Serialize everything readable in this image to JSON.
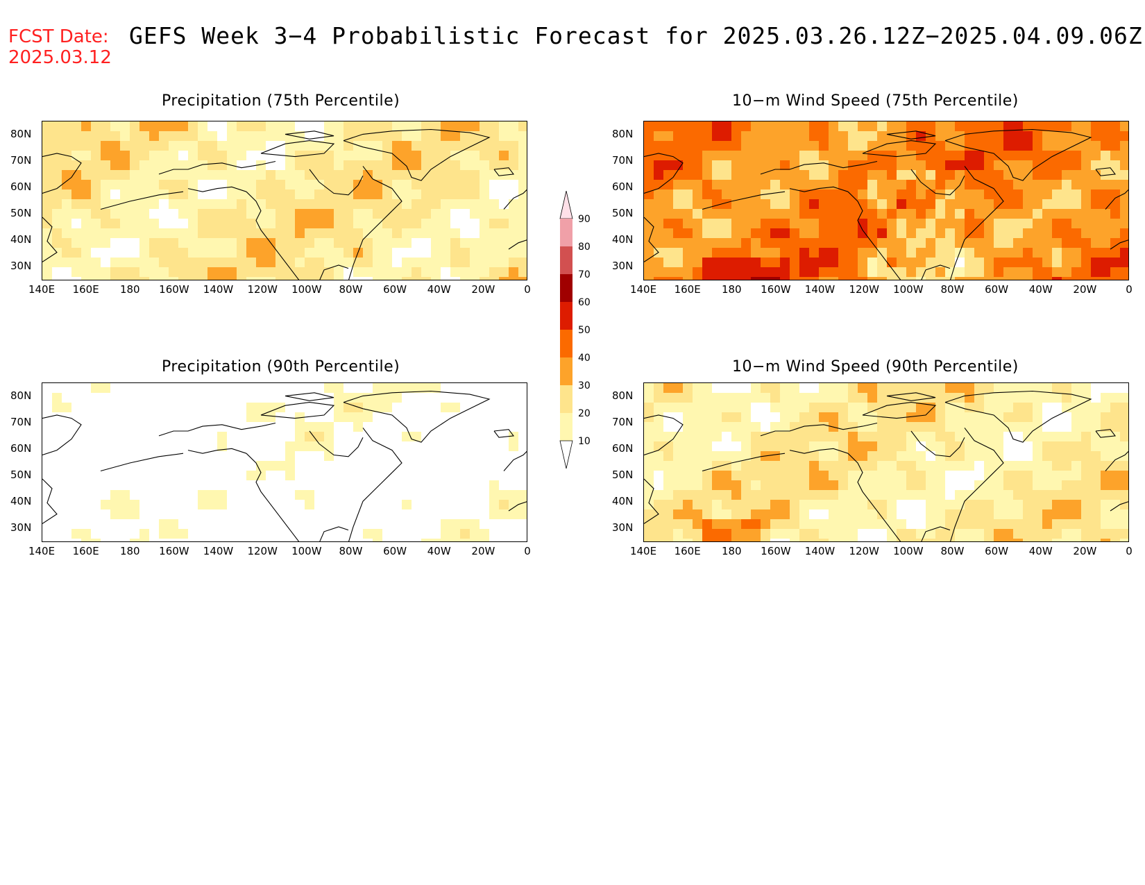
{
  "header": {
    "fcst_label": "FCST Date:",
    "fcst_date": "2025.03.12",
    "title": "GEFS Week 3−4 Probabilistic Forecast for 2025.03.26.12Z−2025.04.09.06Z"
  },
  "axes": {
    "lat_labels": [
      "80N",
      "70N",
      "60N",
      "50N",
      "40N",
      "30N"
    ],
    "lon_labels": [
      "140E",
      "160E",
      "180",
      "160W",
      "140W",
      "120W",
      "100W",
      "80W",
      "60W",
      "40W",
      "20W",
      "0"
    ]
  },
  "panels": [
    {
      "id": "precip75",
      "title": "Precipitation (75th Percentile)",
      "base_level": 20
    },
    {
      "id": "wind75",
      "title": "10−m Wind Speed (75th Percentile)",
      "base_level": 40
    },
    {
      "id": "precip90",
      "title": "Precipitation (90th Percentile)",
      "base_level": 5
    },
    {
      "id": "wind90",
      "title": "10−m Wind Speed (90th Percentile)",
      "base_level": 20
    }
  ],
  "colorbar": {
    "levels": [
      "10",
      "20",
      "30",
      "40",
      "50",
      "60",
      "70",
      "80",
      "90"
    ],
    "colors": [
      "#ffffff",
      "#fff7b0",
      "#fee48c",
      "#fda32a",
      "#fb6a00",
      "#dd1c00",
      "#a00000",
      "#d25050",
      "#f0a0a8",
      "#ffe0e8"
    ]
  },
  "chart_data": {
    "type": "heatmap",
    "units": "probability (%)",
    "lon_range": [
      "140E",
      "0"
    ],
    "lat_range": [
      "25N",
      "85N"
    ],
    "contour_levels": [
      10,
      20,
      30,
      40,
      50,
      60,
      70,
      80,
      90
    ]
  }
}
